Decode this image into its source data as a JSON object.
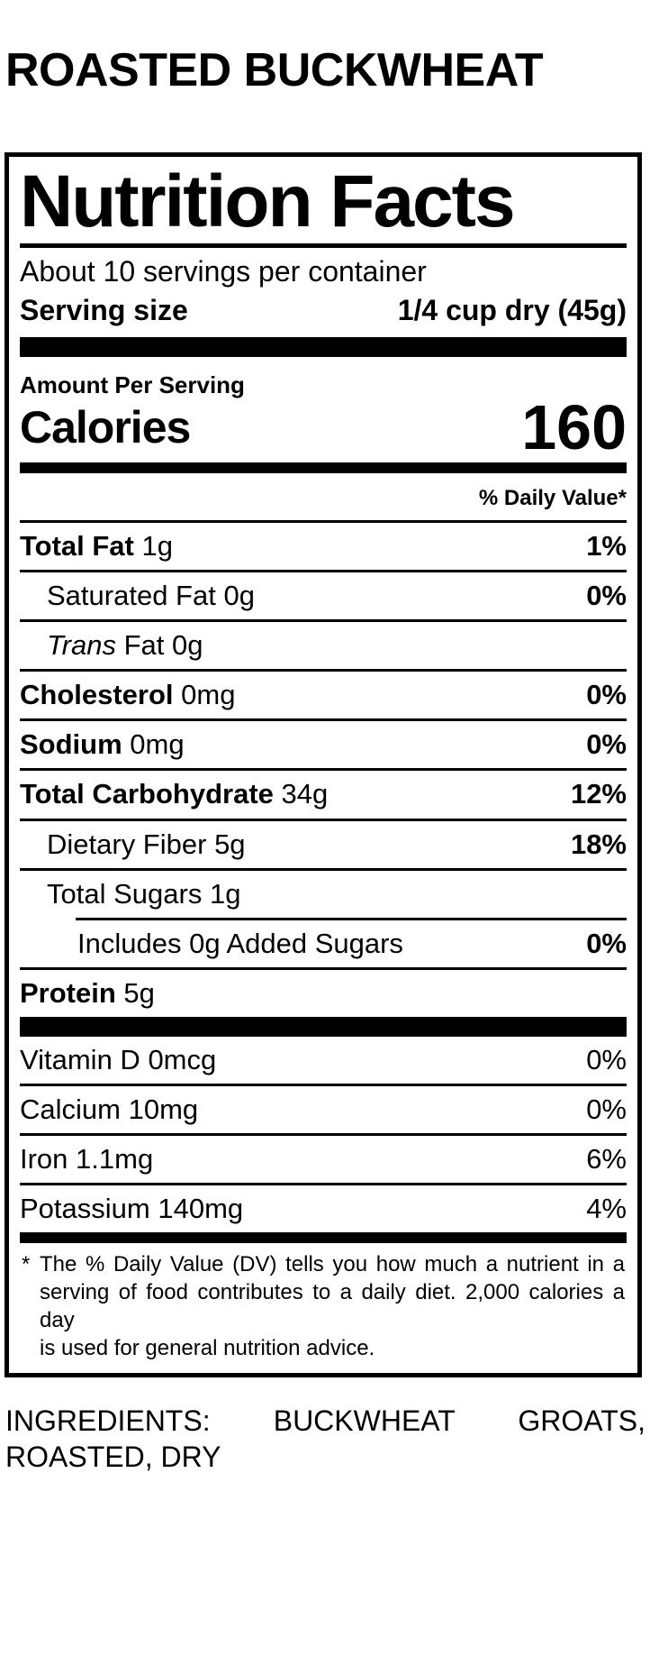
{
  "colors": {
    "text": "#000000",
    "background": "#ffffff"
  },
  "page": {
    "product_title": "ROASTED BUCKWHEAT"
  },
  "label": {
    "heading": "Nutrition Facts",
    "servings_per_container": "About 10 servings per container",
    "serving_size": {
      "label": "Serving size",
      "value": "1/4 cup dry (45g)"
    },
    "amount_per_serving": "Amount Per Serving",
    "calories": {
      "label": "Calories",
      "value": "160"
    },
    "daily_value_header": "% Daily Value*",
    "nutrients": [
      {
        "name": "Total Fat",
        "amount": "1g",
        "dv": "1%"
      },
      {
        "name": "Saturated Fat",
        "amount": "0g",
        "dv": "0%"
      },
      {
        "name_italic": "Trans",
        "name": "Fat",
        "amount": "0g",
        "dv": ""
      },
      {
        "name": "Cholesterol",
        "amount": "0mg",
        "dv": "0%"
      },
      {
        "name": "Sodium",
        "amount": "0mg",
        "dv": "0%"
      },
      {
        "name": "Total Carbohydrate",
        "amount": "34g",
        "dv": "12%"
      },
      {
        "name": "Dietary Fiber",
        "amount": "5g",
        "dv": "18%"
      },
      {
        "name": "Total Sugars",
        "amount": "1g",
        "dv": ""
      },
      {
        "name": "Includes 0g Added Sugars",
        "dv": "0%"
      },
      {
        "name": "Protein",
        "amount": "5g",
        "dv": ""
      }
    ],
    "micronutrients": [
      {
        "name": "Vitamin D",
        "amount": "0mcg",
        "dv": "0%"
      },
      {
        "name": "Calcium",
        "amount": "10mg",
        "dv": "0%"
      },
      {
        "name": "Iron",
        "amount": "1.1mg",
        "dv": "6%"
      },
      {
        "name": "Potassium",
        "amount": "140mg",
        "dv": "4%"
      }
    ],
    "footnote": {
      "marker": "*",
      "lines": [
        "The % Daily Value (DV) tells you how much a nutrient in a",
        "serving of food contributes to a daily diet. 2,000 calories a day",
        "is used for general nutrition advice."
      ]
    }
  },
  "ingredients": {
    "lines": [
      "INGREDIENTS: BUCKWHEAT GROATS,",
      "ROASTED, DRY"
    ]
  }
}
